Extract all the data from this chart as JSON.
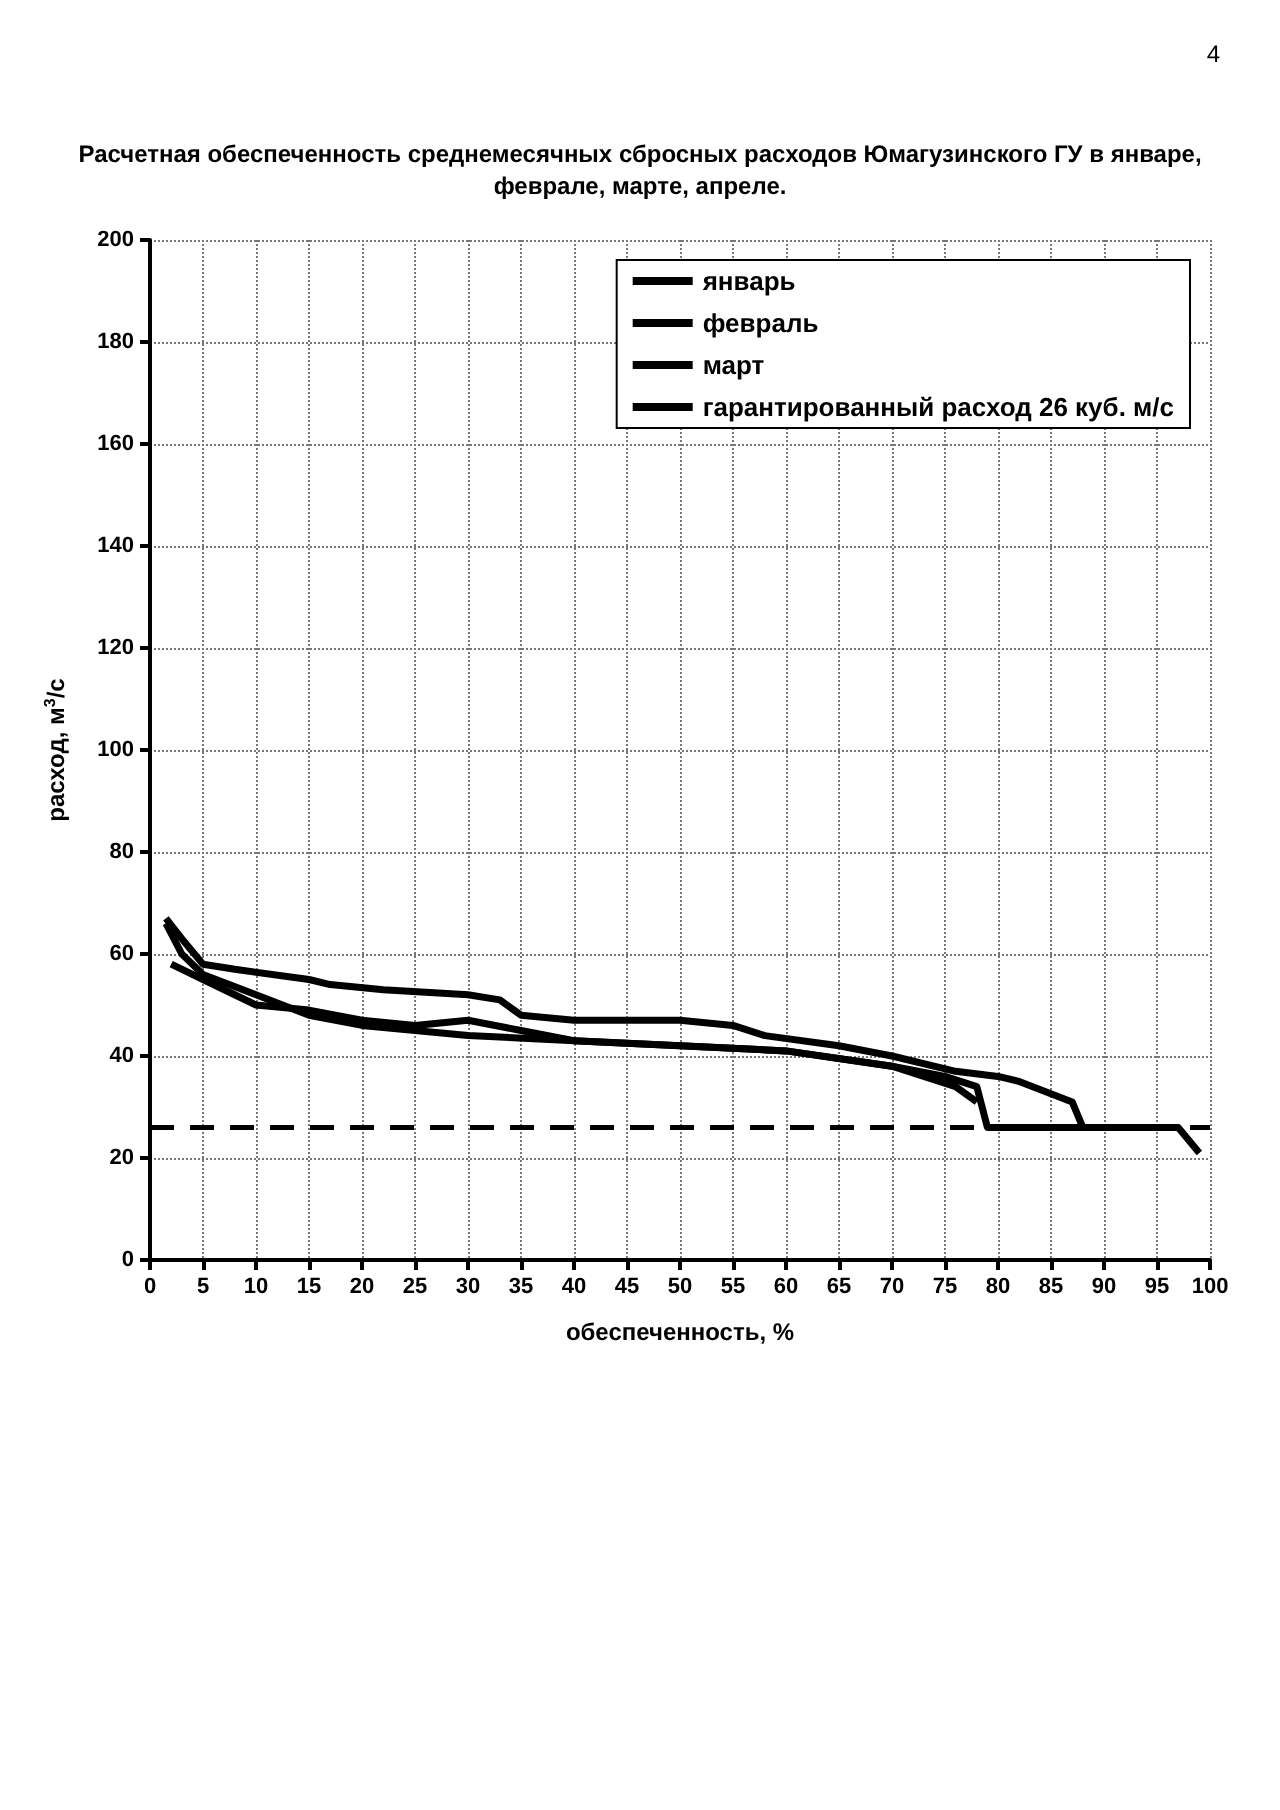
{
  "chart_data": {
    "type": "line",
    "title": "Расчетная обеспеченность среднемесячных сбросных расходов Юмагузинского ГУ в январе,\nфеврале, марте, апреле.",
    "xlabel": "обеспеченность, %",
    "ylabel": "расход, м$^{3}$/с",
    "annotations": [
      "4"
    ],
    "series": [
      {
        "name": "январь",
        "color": "#000000",
        "x": [
          1.5,
          3,
          5,
          8,
          15,
          17,
          22,
          30,
          33,
          35,
          40,
          50,
          55,
          58,
          65,
          70,
          76,
          80,
          82,
          87,
          88,
          97,
          99
        ],
        "values": [
          67,
          63,
          58,
          57,
          55,
          54,
          53,
          52,
          51,
          48,
          47,
          47,
          46,
          44,
          42,
          40,
          37,
          36,
          35,
          31,
          26,
          26,
          21
        ]
      },
      {
        "name": "февраль",
        "color": "#000000",
        "x": [
          1.5,
          3,
          5,
          10,
          15,
          20,
          25,
          30,
          40,
          50,
          60,
          70,
          75,
          78,
          79,
          97
        ],
        "values": [
          66,
          60,
          56,
          52,
          48,
          46,
          45,
          44,
          43,
          42,
          41,
          38,
          36,
          34,
          26,
          26
        ]
      },
      {
        "name": "март",
        "color": "#000000",
        "x": [
          2,
          5,
          10,
          15,
          20,
          25,
          30,
          35,
          40,
          50,
          60,
          70,
          76,
          78
        ],
        "values": [
          58,
          55,
          50,
          49,
          47,
          46,
          47,
          45,
          43,
          42,
          41,
          38,
          34,
          31
        ]
      }
    ],
    "ref_lines": [
      {
        "axis": "y",
        "value": 26,
        "label": "гарантированный расход 26 куб. м/с",
        "color": "#000000",
        "line_style": "dashed"
      }
    ],
    "xlim": [
      0,
      100
    ],
    "xticks": [
      0,
      5,
      10,
      15,
      20,
      25,
      30,
      35,
      40,
      45,
      50,
      55,
      60,
      65,
      70,
      75,
      80,
      85,
      90,
      95,
      100
    ],
    "ylim": [
      0,
      200
    ],
    "yticks": [
      0,
      20,
      40,
      60,
      80,
      100,
      120,
      140,
      160,
      180,
      200
    ],
    "grid": true,
    "legend": "top right",
    "marker": "none",
    "line_style": "solid"
  }
}
